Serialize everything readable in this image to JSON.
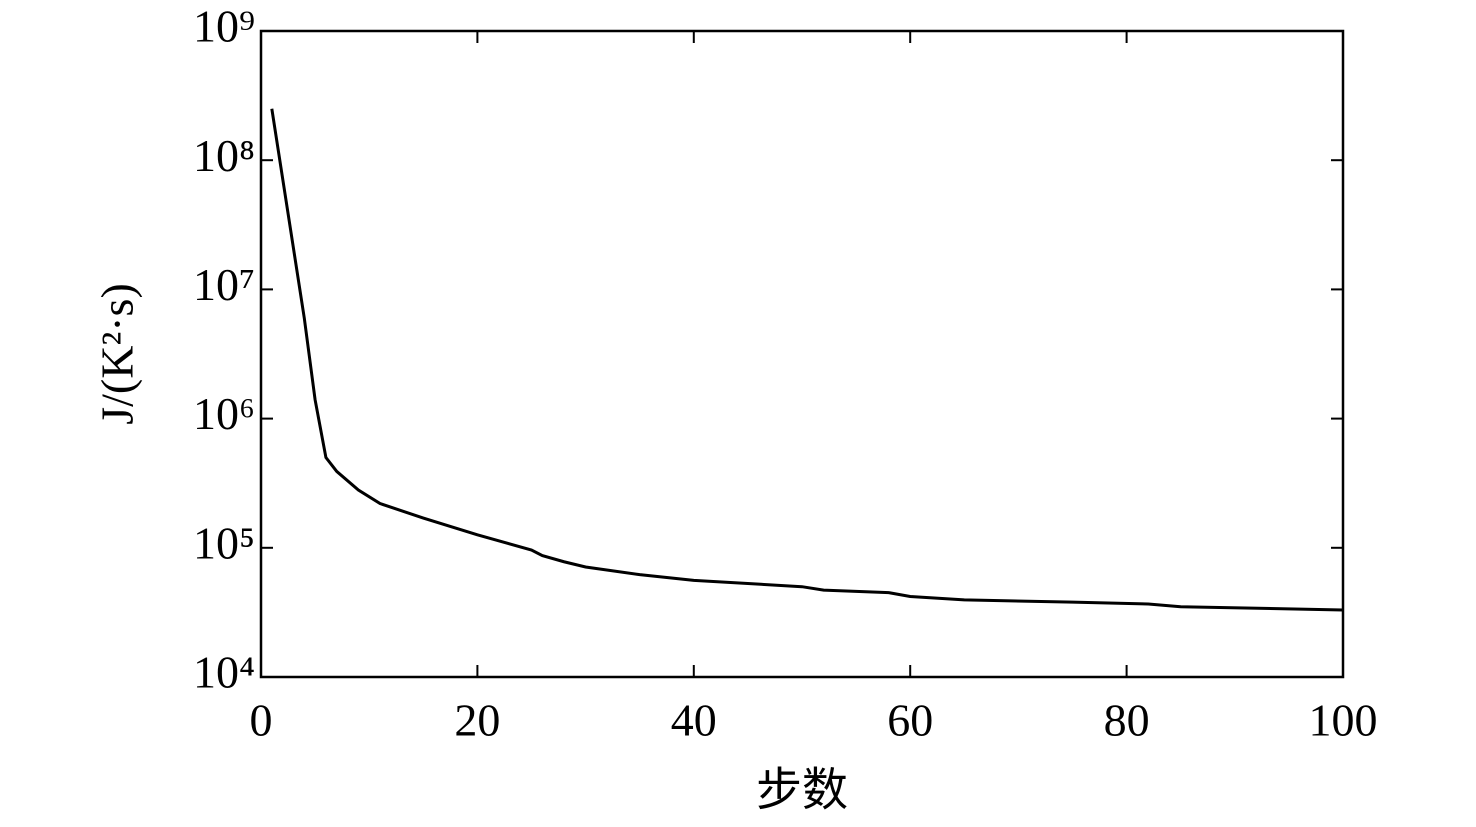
{
  "chart_data": {
    "type": "line",
    "x_label": "步数",
    "y_label": "J/(K²·s)",
    "x": [
      1,
      4,
      5,
      6,
      7,
      9,
      11,
      15,
      20,
      25,
      26,
      28,
      30,
      35,
      40,
      50,
      52,
      58,
      60,
      65,
      75,
      82,
      85,
      100
    ],
    "series": [
      {
        "color": "#000000",
        "values": [
          250000000,
          6000000,
          1400000,
          500000,
          390000,
          280000,
          220000,
          170000,
          126000,
          96000,
          87000,
          78000,
          71000,
          62000,
          56000,
          50000,
          47000,
          45000,
          42000,
          39500,
          38000,
          36700,
          35000,
          33000
        ]
      }
    ],
    "xlim": [
      0,
      100
    ],
    "xticks": [
      0,
      20,
      40,
      60,
      80,
      100
    ],
    "ylim": [
      10000,
      1000000000
    ],
    "yscale": "log",
    "yticks": [
      {
        "value": 10000,
        "label": "10⁴"
      },
      {
        "value": 100000,
        "label": "10⁵"
      },
      {
        "value": 1000000,
        "label": "10⁶"
      },
      {
        "value": 10000000,
        "label": "10⁷"
      },
      {
        "value": 100000000,
        "label": "10⁸"
      },
      {
        "value": 1000000000,
        "label": "10⁹"
      }
    ],
    "grid": false
  }
}
